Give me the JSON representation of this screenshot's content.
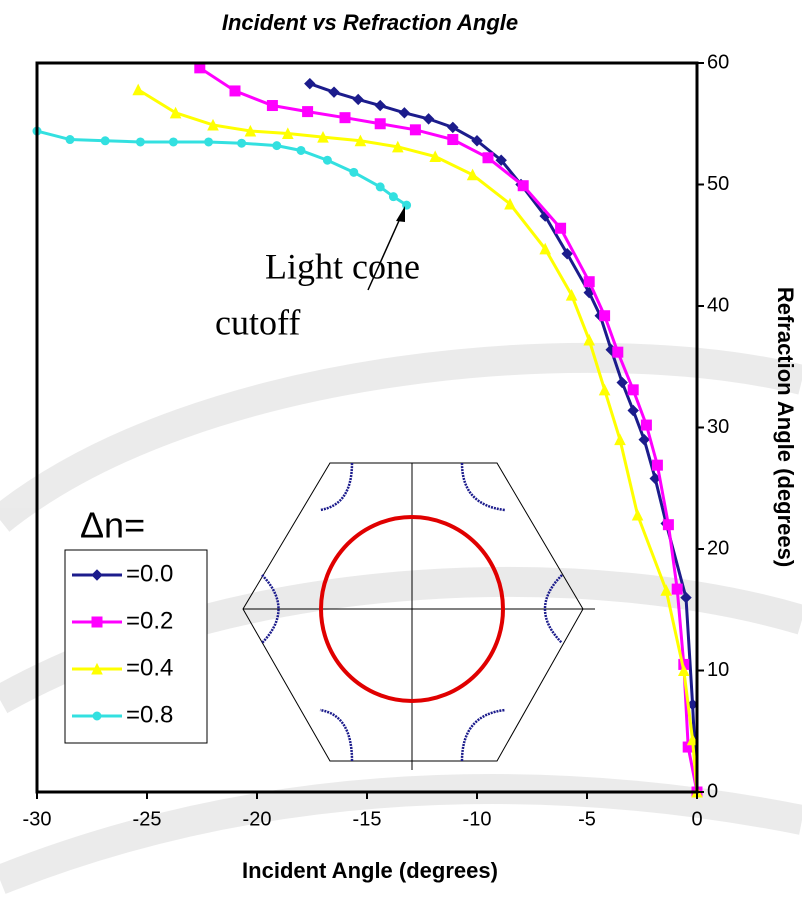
{
  "chart_data": {
    "type": "line",
    "title": "Incident vs Refraction Angle",
    "x_label": "Incident Angle (degrees)",
    "y_label": "Refraction Angle (degrees)",
    "xlim": [
      -30,
      0
    ],
    "xticks": [
      -30,
      -25,
      -20,
      -15,
      -10,
      -5,
      0
    ],
    "ylim": [
      0,
      60
    ],
    "yticks": [
      0,
      10,
      20,
      30,
      40,
      50,
      60
    ],
    "y_axis_side": "right",
    "legend_title": "Δn=",
    "legend_position": "lower left",
    "annotation": [
      "Light cone",
      "cutoff"
    ],
    "series": [
      {
        "name": "=0.0",
        "color": "#1c1c8c",
        "marker": "diamond",
        "x": [
          -17.6,
          -16.5,
          -15.4,
          -14.4,
          -13.3,
          -12.2,
          -11.1,
          -10.0,
          -8.9,
          -8.0,
          -6.9,
          -5.9,
          -4.9,
          -4.4,
          -3.9,
          -3.4,
          -2.9,
          -2.4,
          -1.9,
          -1.4,
          -0.5,
          -0.2,
          0
        ],
        "values": [
          58.3,
          57.6,
          57.0,
          56.5,
          55.9,
          55.4,
          54.7,
          53.6,
          52.0,
          50.0,
          47.4,
          44.3,
          41.1,
          39.2,
          36.4,
          33.7,
          31.4,
          29.0,
          25.8,
          22.1,
          16.0,
          7.2,
          0
        ]
      },
      {
        "name": "=0.2",
        "color": "#ff00ff",
        "marker": "square",
        "x": [
          -22.6,
          -21.0,
          -19.3,
          -17.7,
          -16.0,
          -14.4,
          -12.8,
          -11.1,
          -9.5,
          -7.9,
          -6.2,
          -4.9,
          -4.2,
          -3.6,
          -2.9,
          -2.3,
          -1.8,
          -1.3,
          -0.9,
          -0.6,
          -0.4,
          0
        ],
        "values": [
          59.6,
          57.7,
          56.5,
          56.0,
          55.5,
          55.0,
          54.5,
          53.7,
          52.2,
          49.9,
          46.4,
          42.0,
          39.2,
          36.2,
          33.1,
          30.2,
          26.9,
          22.0,
          16.7,
          10.5,
          3.7,
          0
        ]
      },
      {
        "name": "=0.4",
        "color": "#ffff00",
        "marker": "triangle",
        "x": [
          -25.4,
          -23.7,
          -22.0,
          -20.3,
          -18.6,
          -17.0,
          -15.3,
          -13.6,
          -11.9,
          -10.2,
          -8.5,
          -6.9,
          -5.7,
          -4.9,
          -4.2,
          -3.5,
          -2.7,
          -1.4,
          -0.6,
          -0.2,
          0
        ],
        "values": [
          57.8,
          55.9,
          54.9,
          54.4,
          54.2,
          53.9,
          53.6,
          53.1,
          52.3,
          50.8,
          48.4,
          44.7,
          40.9,
          37.2,
          33.1,
          29.0,
          22.8,
          16.6,
          10.0,
          4.3,
          0
        ]
      },
      {
        "name": "=0.8",
        "color": "#33e0e0",
        "marker": "circle",
        "x": [
          -30.0,
          -28.5,
          -26.9,
          -25.3,
          -23.8,
          -22.2,
          -20.7,
          -19.1,
          -18.0,
          -16.8,
          -15.6,
          -14.4,
          -13.8,
          -13.2
        ],
        "values": [
          54.4,
          53.7,
          53.6,
          53.5,
          53.5,
          53.5,
          53.4,
          53.2,
          52.8,
          52.0,
          51.0,
          49.8,
          49.0,
          48.3
        ]
      }
    ]
  }
}
